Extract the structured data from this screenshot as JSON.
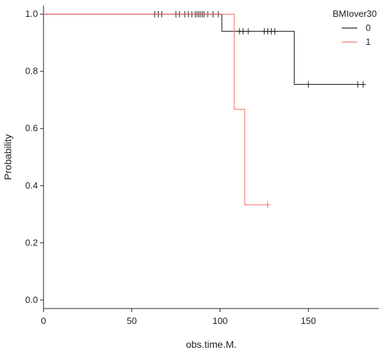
{
  "chart_data": {
    "type": "line",
    "subtype": "kaplan-meier-step",
    "xlabel": "obs.time.M.",
    "ylabel": "Probability",
    "xlim": [
      0,
      190
    ],
    "ylim": [
      -0.03,
      1.03
    ],
    "x_ticks": [
      0,
      50,
      100,
      150
    ],
    "y_ticks": [
      0.0,
      0.2,
      0.4,
      0.6,
      0.8,
      1.0
    ],
    "x_tick_labels": [
      "0",
      "50",
      "100",
      "150"
    ],
    "y_tick_labels": [
      "0.0",
      "0.2",
      "0.4",
      "0.6",
      "0.8",
      "1.0"
    ],
    "grid": false,
    "legend": {
      "title": "BMIover30",
      "position": "top-right"
    },
    "series": [
      {
        "name": "0",
        "color": "#222222",
        "steps": [
          [
            0,
            1.0
          ],
          [
            101,
            0.94
          ],
          [
            142,
            0.754
          ],
          [
            182,
            0.754
          ]
        ],
        "censored": [
          [
            63,
            1.0
          ],
          [
            65,
            1.0
          ],
          [
            67,
            1.0
          ],
          [
            75,
            1.0
          ],
          [
            77,
            1.0
          ],
          [
            80,
            1.0
          ],
          [
            82,
            1.0
          ],
          [
            84,
            1.0
          ],
          [
            86,
            1.0
          ],
          [
            87,
            1.0
          ],
          [
            88,
            1.0
          ],
          [
            89,
            1.0
          ],
          [
            90,
            1.0
          ],
          [
            91,
            1.0
          ],
          [
            93,
            1.0
          ],
          [
            96,
            1.0
          ],
          [
            99,
            1.0
          ],
          [
            111,
            0.94
          ],
          [
            113,
            0.94
          ],
          [
            116,
            0.94
          ],
          [
            125,
            0.94
          ],
          [
            127,
            0.94
          ],
          [
            129,
            0.94
          ],
          [
            131,
            0.94
          ],
          [
            150,
            0.754
          ],
          [
            178,
            0.754
          ],
          [
            181,
            0.754
          ]
        ]
      },
      {
        "name": "1",
        "color": "#f8766d",
        "steps": [
          [
            0,
            1.0
          ],
          [
            108,
            0.667
          ],
          [
            114,
            0.333
          ],
          [
            127,
            0.333
          ]
        ],
        "censored": [
          [
            127,
            0.333
          ]
        ]
      }
    ]
  }
}
